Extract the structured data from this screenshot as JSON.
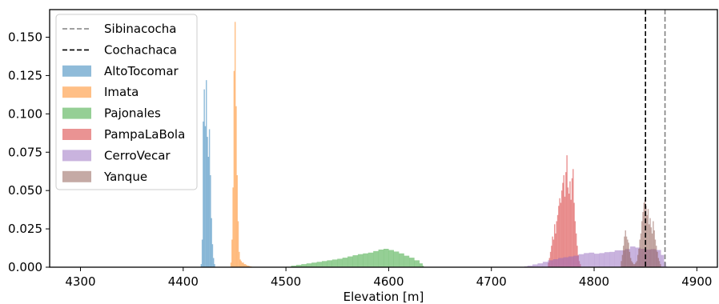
{
  "chart_data": {
    "type": "histogram",
    "title": "",
    "xlabel": "Elevation [m]",
    "ylabel": "",
    "xlim": [
      4270,
      4920
    ],
    "ylim": [
      0,
      0.168
    ],
    "x_ticks": [
      4300,
      4400,
      4500,
      4600,
      4700,
      4800,
      4900
    ],
    "y_ticks": [
      0.0,
      0.025,
      0.05,
      0.075,
      0.1,
      0.125,
      0.15
    ],
    "y_tick_labels": [
      "0.000",
      "0.025",
      "0.050",
      "0.075",
      "0.100",
      "0.125",
      "0.150"
    ],
    "grid": false,
    "legend": "upper-left",
    "reference_lines": [
      {
        "name": "Sibinacocha",
        "x": 4869,
        "color": "#808080",
        "style": "dashed"
      },
      {
        "name": "Cochachaca",
        "x": 4850,
        "color": "#000000",
        "style": "dashed"
      }
    ],
    "series": [
      {
        "name": "AltoTocomar",
        "color": "#1f77b4",
        "bin_width": 1,
        "bins": [
          [
            4417,
            0.002
          ],
          [
            4418,
            0.018
          ],
          [
            4419,
            0.095
          ],
          [
            4420,
            0.116
          ],
          [
            4421,
            0.092
          ],
          [
            4422,
            0.122
          ],
          [
            4423,
            0.085
          ],
          [
            4424,
            0.072
          ],
          [
            4425,
            0.09
          ],
          [
            4426,
            0.06
          ],
          [
            4427,
            0.032
          ],
          [
            4428,
            0.015
          ],
          [
            4429,
            0.006
          ],
          [
            4430,
            0.002
          ]
        ]
      },
      {
        "name": "Imata",
        "color": "#ff7f0e",
        "bin_width": 1,
        "bins": [
          [
            4446,
            0.003
          ],
          [
            4447,
            0.018
          ],
          [
            4448,
            0.052
          ],
          [
            4449,
            0.128
          ],
          [
            4450,
            0.16
          ],
          [
            4451,
            0.105
          ],
          [
            4452,
            0.06
          ],
          [
            4453,
            0.03
          ],
          [
            4454,
            0.01
          ],
          [
            4455,
            0.005
          ],
          [
            4456,
            0.004
          ],
          [
            4457,
            0.003
          ],
          [
            4458,
            0.003
          ],
          [
            4459,
            0.002
          ],
          [
            4460,
            0.002
          ],
          [
            4461,
            0.0015
          ],
          [
            4462,
            0.001
          ],
          [
            4463,
            0.001
          ],
          [
            4464,
            0.0008
          ],
          [
            4465,
            0.0005
          ],
          [
            4466,
            0.0004
          ]
        ]
      },
      {
        "name": "Pajonales",
        "color": "#2ca02c",
        "bin_width": 1,
        "bins": [
          [
            4500,
            0.0003
          ],
          [
            4505,
            0.001
          ],
          [
            4510,
            0.0015
          ],
          [
            4515,
            0.002
          ],
          [
            4520,
            0.0025
          ],
          [
            4525,
            0.003
          ],
          [
            4530,
            0.0035
          ],
          [
            4535,
            0.004
          ],
          [
            4540,
            0.0045
          ],
          [
            4545,
            0.005
          ],
          [
            4550,
            0.0055
          ],
          [
            4555,
            0.0062
          ],
          [
            4560,
            0.007
          ],
          [
            4565,
            0.0078
          ],
          [
            4570,
            0.0085
          ],
          [
            4575,
            0.009
          ],
          [
            4580,
            0.0095
          ],
          [
            4585,
            0.0105
          ],
          [
            4590,
            0.0115
          ],
          [
            4595,
            0.012
          ],
          [
            4600,
            0.0112
          ],
          [
            4605,
            0.0102
          ],
          [
            4610,
            0.009
          ],
          [
            4615,
            0.0075
          ],
          [
            4620,
            0.0062
          ],
          [
            4625,
            0.0045
          ],
          [
            4630,
            0.0025
          ],
          [
            4633,
            0.001
          ]
        ]
      },
      {
        "name": "PampaLaBola",
        "color": "#d62728",
        "bin_width": 1,
        "bins": [
          [
            4755,
            0.003
          ],
          [
            4756,
            0.006
          ],
          [
            4757,
            0.01
          ],
          [
            4758,
            0.014
          ],
          [
            4759,
            0.02
          ],
          [
            4760,
            0.018
          ],
          [
            4761,
            0.028
          ],
          [
            4762,
            0.022
          ],
          [
            4763,
            0.03
          ],
          [
            4764,
            0.034
          ],
          [
            4765,
            0.04
          ],
          [
            4766,
            0.045
          ],
          [
            4767,
            0.042
          ],
          [
            4768,
            0.05
          ],
          [
            4769,
            0.055
          ],
          [
            4770,
            0.06
          ],
          [
            4771,
            0.046
          ],
          [
            4772,
            0.062
          ],
          [
            4773,
            0.073
          ],
          [
            4774,
            0.052
          ],
          [
            4775,
            0.048
          ],
          [
            4776,
            0.056
          ],
          [
            4777,
            0.044
          ],
          [
            4778,
            0.058
          ],
          [
            4779,
            0.064
          ],
          [
            4780,
            0.042
          ],
          [
            4781,
            0.03
          ],
          [
            4782,
            0.022
          ],
          [
            4783,
            0.014
          ],
          [
            4784,
            0.008
          ],
          [
            4785,
            0.004
          ],
          [
            4786,
            0.002
          ]
        ]
      },
      {
        "name": "CerroVecar",
        "color": "#9467bd",
        "bin_width": 1,
        "bins": [
          [
            4732,
            0.0005
          ],
          [
            4735,
            0.001
          ],
          [
            4740,
            0.0018
          ],
          [
            4745,
            0.0025
          ],
          [
            4750,
            0.0035
          ],
          [
            4755,
            0.0045
          ],
          [
            4760,
            0.0052
          ],
          [
            4765,
            0.006
          ],
          [
            4770,
            0.0065
          ],
          [
            4775,
            0.007
          ],
          [
            4780,
            0.0075
          ],
          [
            4785,
            0.0085
          ],
          [
            4790,
            0.0092
          ],
          [
            4795,
            0.0095
          ],
          [
            4800,
            0.0088
          ],
          [
            4805,
            0.0092
          ],
          [
            4810,
            0.0098
          ],
          [
            4815,
            0.01
          ],
          [
            4820,
            0.011
          ],
          [
            4825,
            0.011
          ],
          [
            4830,
            0.0118
          ],
          [
            4835,
            0.0135
          ],
          [
            4840,
            0.0128
          ],
          [
            4845,
            0.012
          ],
          [
            4850,
            0.0115
          ],
          [
            4855,
            0.0118
          ],
          [
            4860,
            0.0112
          ],
          [
            4865,
            0.008
          ],
          [
            4868,
            0.003
          ],
          [
            4870,
            0.0005
          ]
        ]
      },
      {
        "name": "Yanque",
        "color": "#8c564b",
        "bin_width": 1,
        "bins": [
          [
            4826,
            0.004
          ],
          [
            4827,
            0.008
          ],
          [
            4828,
            0.014
          ],
          [
            4829,
            0.02
          ],
          [
            4830,
            0.024
          ],
          [
            4831,
            0.02
          ],
          [
            4832,
            0.018
          ],
          [
            4833,
            0.016
          ],
          [
            4834,
            0.01
          ],
          [
            4835,
            0.006
          ],
          [
            4836,
            0.004
          ],
          [
            4837,
            0.003
          ],
          [
            4838,
            0.002
          ],
          [
            4839,
            0.002
          ],
          [
            4840,
            0.003
          ],
          [
            4841,
            0.004
          ],
          [
            4842,
            0.008
          ],
          [
            4843,
            0.012
          ],
          [
            4844,
            0.018
          ],
          [
            4845,
            0.022
          ],
          [
            4846,
            0.03
          ],
          [
            4847,
            0.036
          ],
          [
            4848,
            0.042
          ],
          [
            4849,
            0.044
          ],
          [
            4850,
            0.04
          ],
          [
            4851,
            0.034
          ],
          [
            4852,
            0.038
          ],
          [
            4853,
            0.028
          ],
          [
            4854,
            0.032
          ],
          [
            4855,
            0.026
          ],
          [
            4856,
            0.022
          ],
          [
            4857,
            0.03
          ],
          [
            4858,
            0.024
          ],
          [
            4859,
            0.018
          ],
          [
            4860,
            0.014
          ],
          [
            4861,
            0.01
          ],
          [
            4862,
            0.006
          ],
          [
            4863,
            0.004
          ],
          [
            4864,
            0.002
          ]
        ]
      }
    ]
  }
}
